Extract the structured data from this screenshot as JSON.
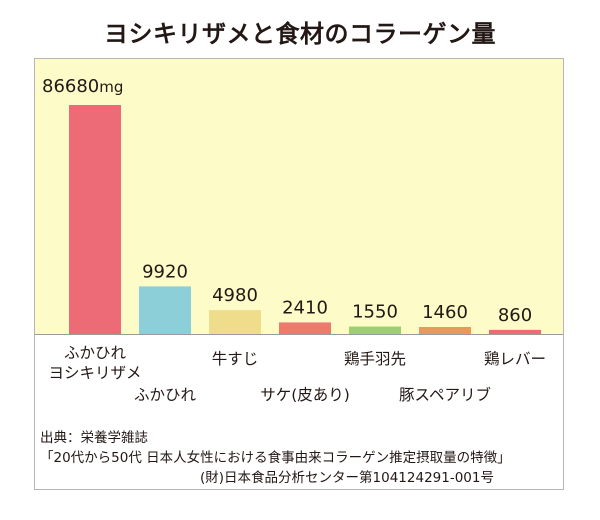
{
  "title": "ヨシキリザメと食材のコラーゲン量",
  "unit": "mg",
  "chart_data": {
    "type": "bar",
    "categories": [
      "ふかひれ\nヨシキリザメ",
      "ふかひれ",
      "牛すじ",
      "サケ(皮あり)",
      "鶏手羽先",
      "豚スペアリブ",
      "鶏レバー"
    ],
    "values": [
      86680,
      9920,
      4980,
      2410,
      1550,
      1460,
      860
    ],
    "value_labels": [
      "86680",
      "9920",
      "4980",
      "2410",
      "1550",
      "1460",
      "860"
    ],
    "title": "ヨシキリザメと食材のコラーゲン量",
    "ylim": [
      0,
      86680
    ],
    "colors": [
      "#ec6b76",
      "#8ccfd8",
      "#f0dd8c",
      "#ec7a6e",
      "#9dce6f",
      "#e9995a",
      "#ec6b76"
    ],
    "grid": false,
    "legend": "none"
  },
  "source": {
    "line1": "出典：栄養学雑誌",
    "line2": "「20代から50代 日本人女性における食事由来コラーゲン推定摂取量の特徴」",
    "line3": "(財)日本食品分析センター第104124291-001号"
  }
}
